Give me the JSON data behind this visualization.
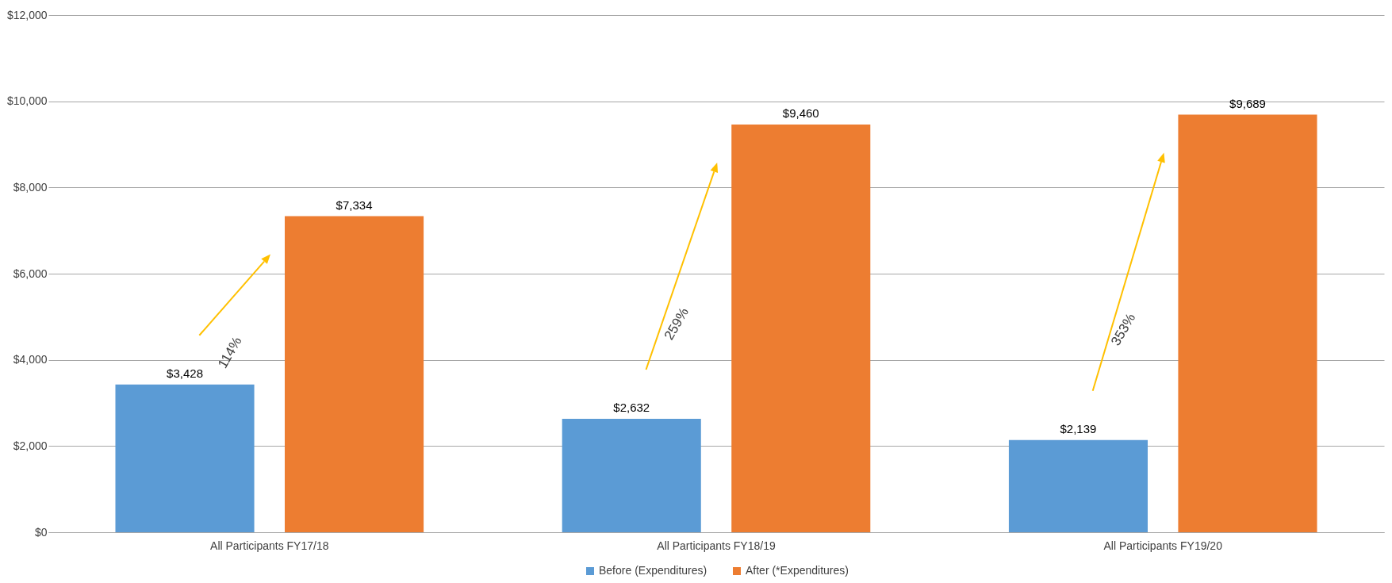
{
  "chart_data": {
    "type": "bar",
    "categories": [
      "All Participants FY17/18",
      "All Participants FY18/19",
      "All Participants FY19/20"
    ],
    "series": [
      {
        "name": "Before (Expenditures)",
        "color": "#5b9bd5",
        "values": [
          3428,
          2632,
          2139
        ],
        "value_labels": [
          "$3,428",
          "$2,632",
          "$2,139"
        ]
      },
      {
        "name": "After (*Expenditures)",
        "color": "#ed7d31",
        "values": [
          7334,
          9460,
          9689
        ],
        "value_labels": [
          "$7,334",
          "$9,460",
          "$9,689"
        ]
      }
    ],
    "ylim": [
      0,
      12000
    ],
    "yticks": [
      {
        "value": 0,
        "label": "$0"
      },
      {
        "value": 2000,
        "label": "$2,000"
      },
      {
        "value": 4000,
        "label": "$4,000"
      },
      {
        "value": 6000,
        "label": "$6,000"
      },
      {
        "value": 8000,
        "label": "$8,000"
      },
      {
        "value": 10000,
        "label": "$10,000"
      },
      {
        "value": 12000,
        "label": "$12,000"
      }
    ],
    "annotations": [
      "114%",
      "259%",
      "353%"
    ],
    "grid": "y",
    "legend": "bottom"
  }
}
